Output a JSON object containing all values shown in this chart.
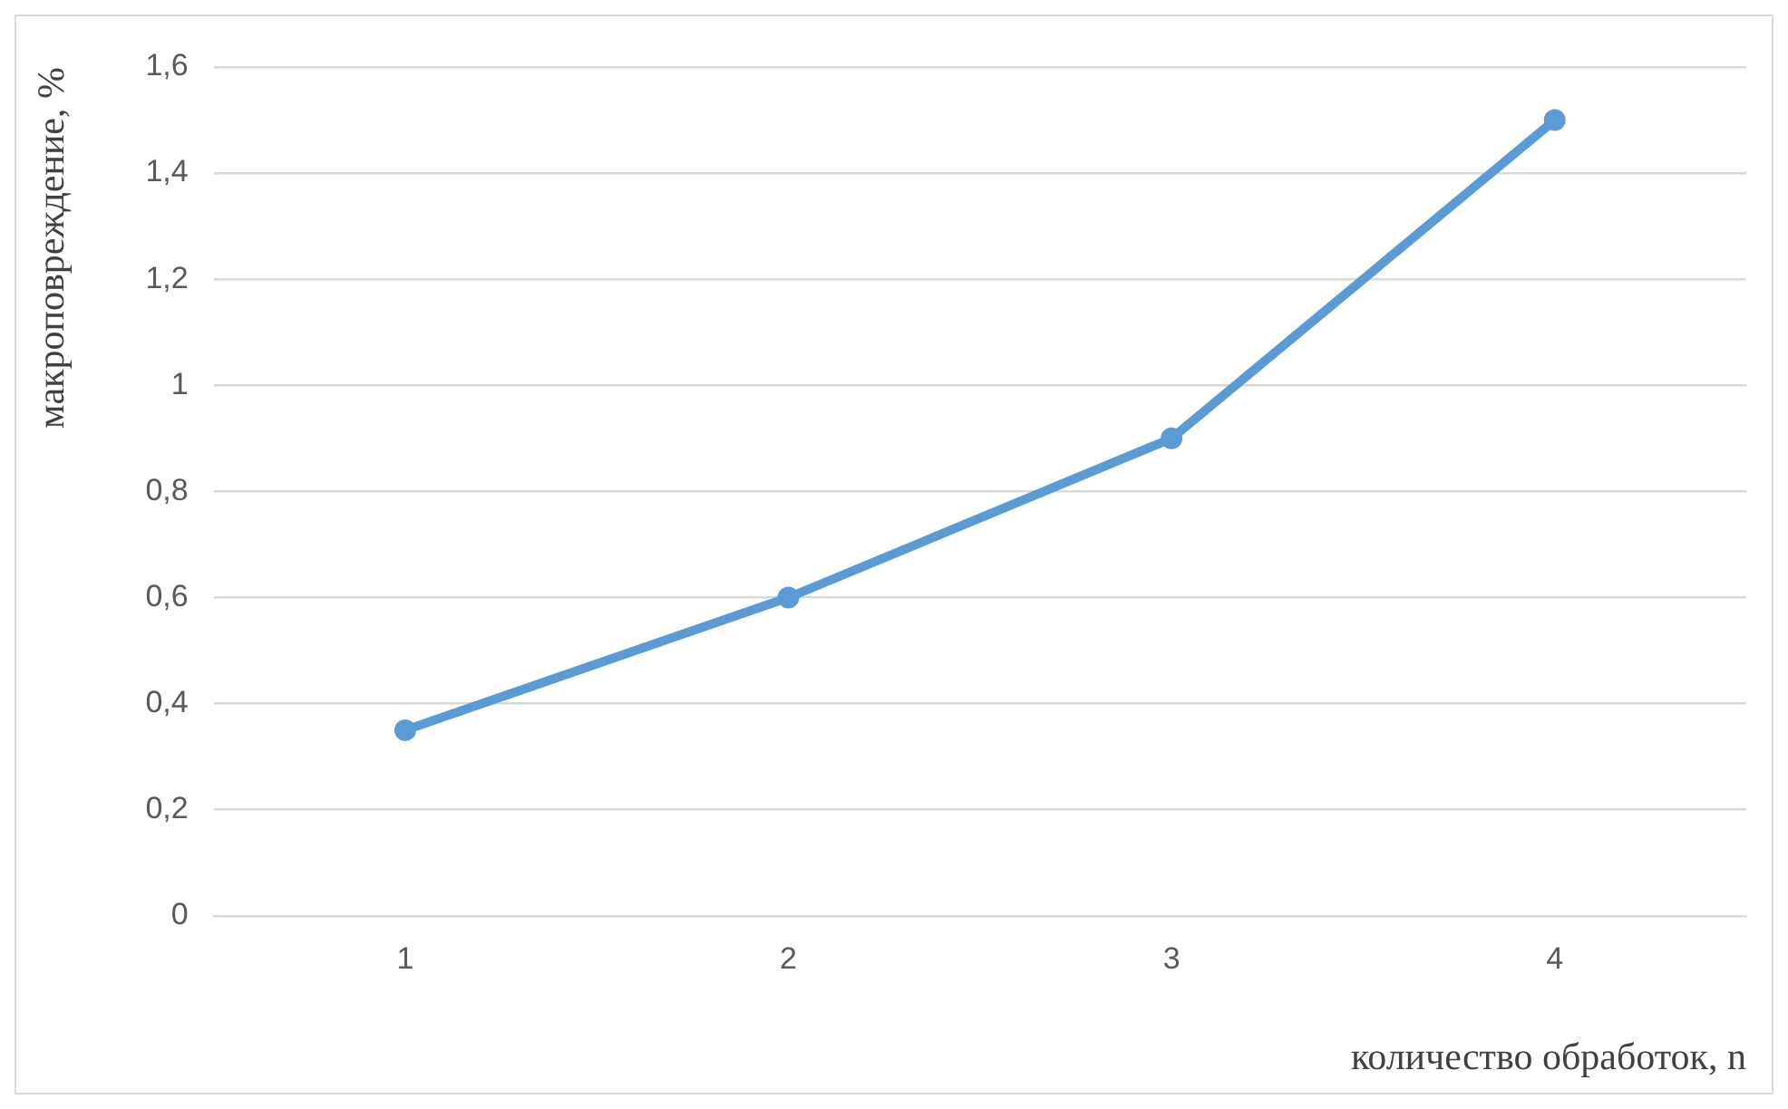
{
  "chart_data": {
    "type": "line",
    "xlabel": "количество обработок, n",
    "ylabel": "макроповреждение, %",
    "categories": [
      "1",
      "2",
      "3",
      "4"
    ],
    "series": [
      {
        "color": "#5b9bd5",
        "values": [
          0.35,
          0.6,
          0.9,
          1.5
        ]
      }
    ],
    "ylim": [
      0,
      1.6
    ],
    "yticks": [
      0,
      {
        "value": 0.2,
        "label": "0,2"
      },
      {
        "value": 0.4,
        "label": "0,4"
      },
      {
        "value": 0.6,
        "label": "0,6"
      },
      {
        "value": 0.8,
        "label": "0,8"
      },
      1,
      {
        "value": 1.2,
        "label": "1,2"
      },
      {
        "value": 1.4,
        "label": "1,4"
      },
      {
        "value": 1.6,
        "label": "1,6"
      }
    ],
    "grid": "y",
    "marker": "circle",
    "line_style": "solid",
    "legend": false
  }
}
